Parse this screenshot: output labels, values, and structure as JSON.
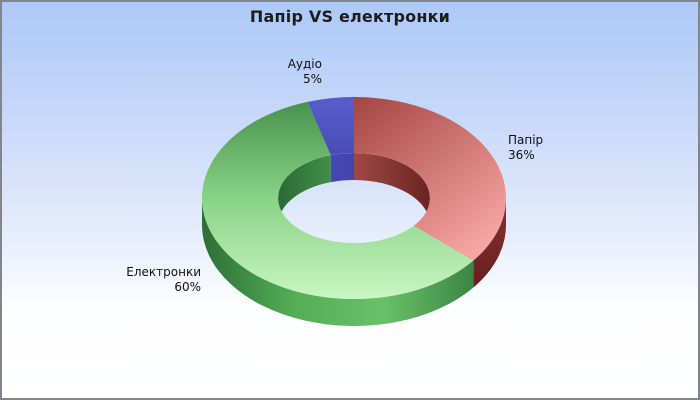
{
  "window": {
    "border_color": "#82858c",
    "background_top": "#adc9f7",
    "background_bottom": "#ffffff"
  },
  "chart_data": {
    "type": "pie",
    "subtype": "3d-donut",
    "title": "Папір VS електронки",
    "title_color": "#1c1c1c",
    "label_color": "#111111",
    "direction": "clockwise",
    "start_angle_deg": 0,
    "labels_position": "outside",
    "slices": [
      {
        "id": "paper",
        "label": "Папір",
        "pct": "36%",
        "value": 36,
        "colors": {
          "top": [
            "#a34543",
            "#f7a4a2"
          ],
          "outer_wall": [
            "#86332f",
            "#671f1e"
          ],
          "inner_wall": [
            "#9e4944",
            "#6b2422"
          ]
        }
      },
      {
        "id": "ebooks",
        "label": "Електронки",
        "pct": "60%",
        "value": 60,
        "colors": {
          "top": [
            "#47934c",
            "#8ad487",
            "#c9f6c3"
          ],
          "outer_wall": [
            "#2d6e37",
            "#52ad55",
            "#68c168",
            "#3c8644"
          ],
          "inner_wall": [
            "#2c6935",
            "#418f4a"
          ]
        }
      },
      {
        "id": "audio",
        "label": "Аудіо",
        "pct": "5%",
        "value": 5,
        "colors": {
          "top": [
            "#575dcc",
            "#484db6"
          ],
          "inner_wall": [
            "#4549b2",
            "#4246a8"
          ]
        }
      }
    ]
  }
}
